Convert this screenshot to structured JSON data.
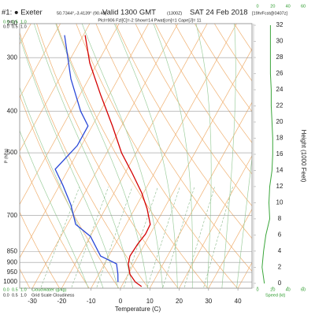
{
  "chart_data": {
    "type": "skewt",
    "station": "#1: ● Exeter",
    "coords": "50.7344°,-3.4139° (90.48)",
    "title": "Valid 1300 GMT",
    "title_small": "(1300Z)",
    "title_date": "SAT 24 Feb 2018",
    "forecast": "[19hrFcst@0407z]",
    "subtitle": "Plcl=906 Fzl[C]=-2 Show=14 Pwat[cm]=1 Cape[J]= 11",
    "xlabel": "Temperature (C)",
    "ylabel": "P (hPa)",
    "y2label": "Height (1000 Feet)",
    "speed_label": "Speed (kt)",
    "cloud_water_label": "CloudWater (g/kg)",
    "cloudiness_label": "Grid Scale Cloudiness",
    "xlim": [
      -34.3,
      44.8
    ],
    "xticks": [
      -30,
      -20,
      -10,
      0,
      10,
      20,
      30,
      40
    ],
    "ylim": [
      1034,
      250
    ],
    "yticks": [
      250,
      300,
      400,
      500,
      700,
      850,
      900,
      950,
      1000
    ],
    "log_y": true,
    "y2lim": [
      -0.6,
      32.2
    ],
    "y2ticks": [
      0,
      2,
      4,
      6,
      8,
      10,
      12,
      14,
      16,
      18,
      20,
      22,
      24,
      26,
      28,
      30,
      32
    ],
    "speed_lim": [
      0,
      60
    ],
    "speed_ticks": [
      0,
      20,
      40,
      60
    ],
    "cloud_ticks": [
      {
        "value": 0,
        "label": "0.0"
      },
      {
        "value": 0.5,
        "label": "0.5"
      },
      {
        "value": 1,
        "label": "1.0"
      }
    ],
    "series": [
      {
        "color": "#d40000",
        "pressure": [
          266,
          309,
          366,
          433,
          500,
          558,
          620,
          675,
          734,
          773,
          816,
          870,
          907,
          959,
          1000,
          1025
        ],
        "values": [
          -59.4,
          -52.6,
          -43.0,
          -33.1,
          -25.0,
          -17.5,
          -10.6,
          -5.8,
          -1.8,
          -1.6,
          -2.4,
          -2.8,
          -1.9,
          0.6,
          3.9,
          6.9
        ]
      },
      {
        "color": "#2a48d8",
        "pressure": [
          266,
          336,
          400,
          433,
          481,
          546,
          595,
          661,
          734,
          783,
          870,
          907,
          959,
          1000
        ],
        "values": [
          -66.4,
          -56.1,
          -46.7,
          -41.4,
          -41.4,
          -44.5,
          -38.9,
          -32.5,
          -27.2,
          -19.9,
          -12.8,
          -5.9,
          -3.5,
          -2.0
        ]
      },
      {
        "color": "#3aa63a",
        "axis": "y2",
        "heights": [
          0,
          2,
          4,
          6,
          8,
          10,
          12,
          14,
          16,
          18,
          20,
          22,
          24,
          26,
          28,
          30,
          32
        ],
        "values": [
          9,
          6,
          8,
          11,
          16,
          15,
          16,
          19,
          20,
          20,
          19,
          18,
          18,
          17,
          17,
          17,
          17
        ]
      }
    ]
  }
}
